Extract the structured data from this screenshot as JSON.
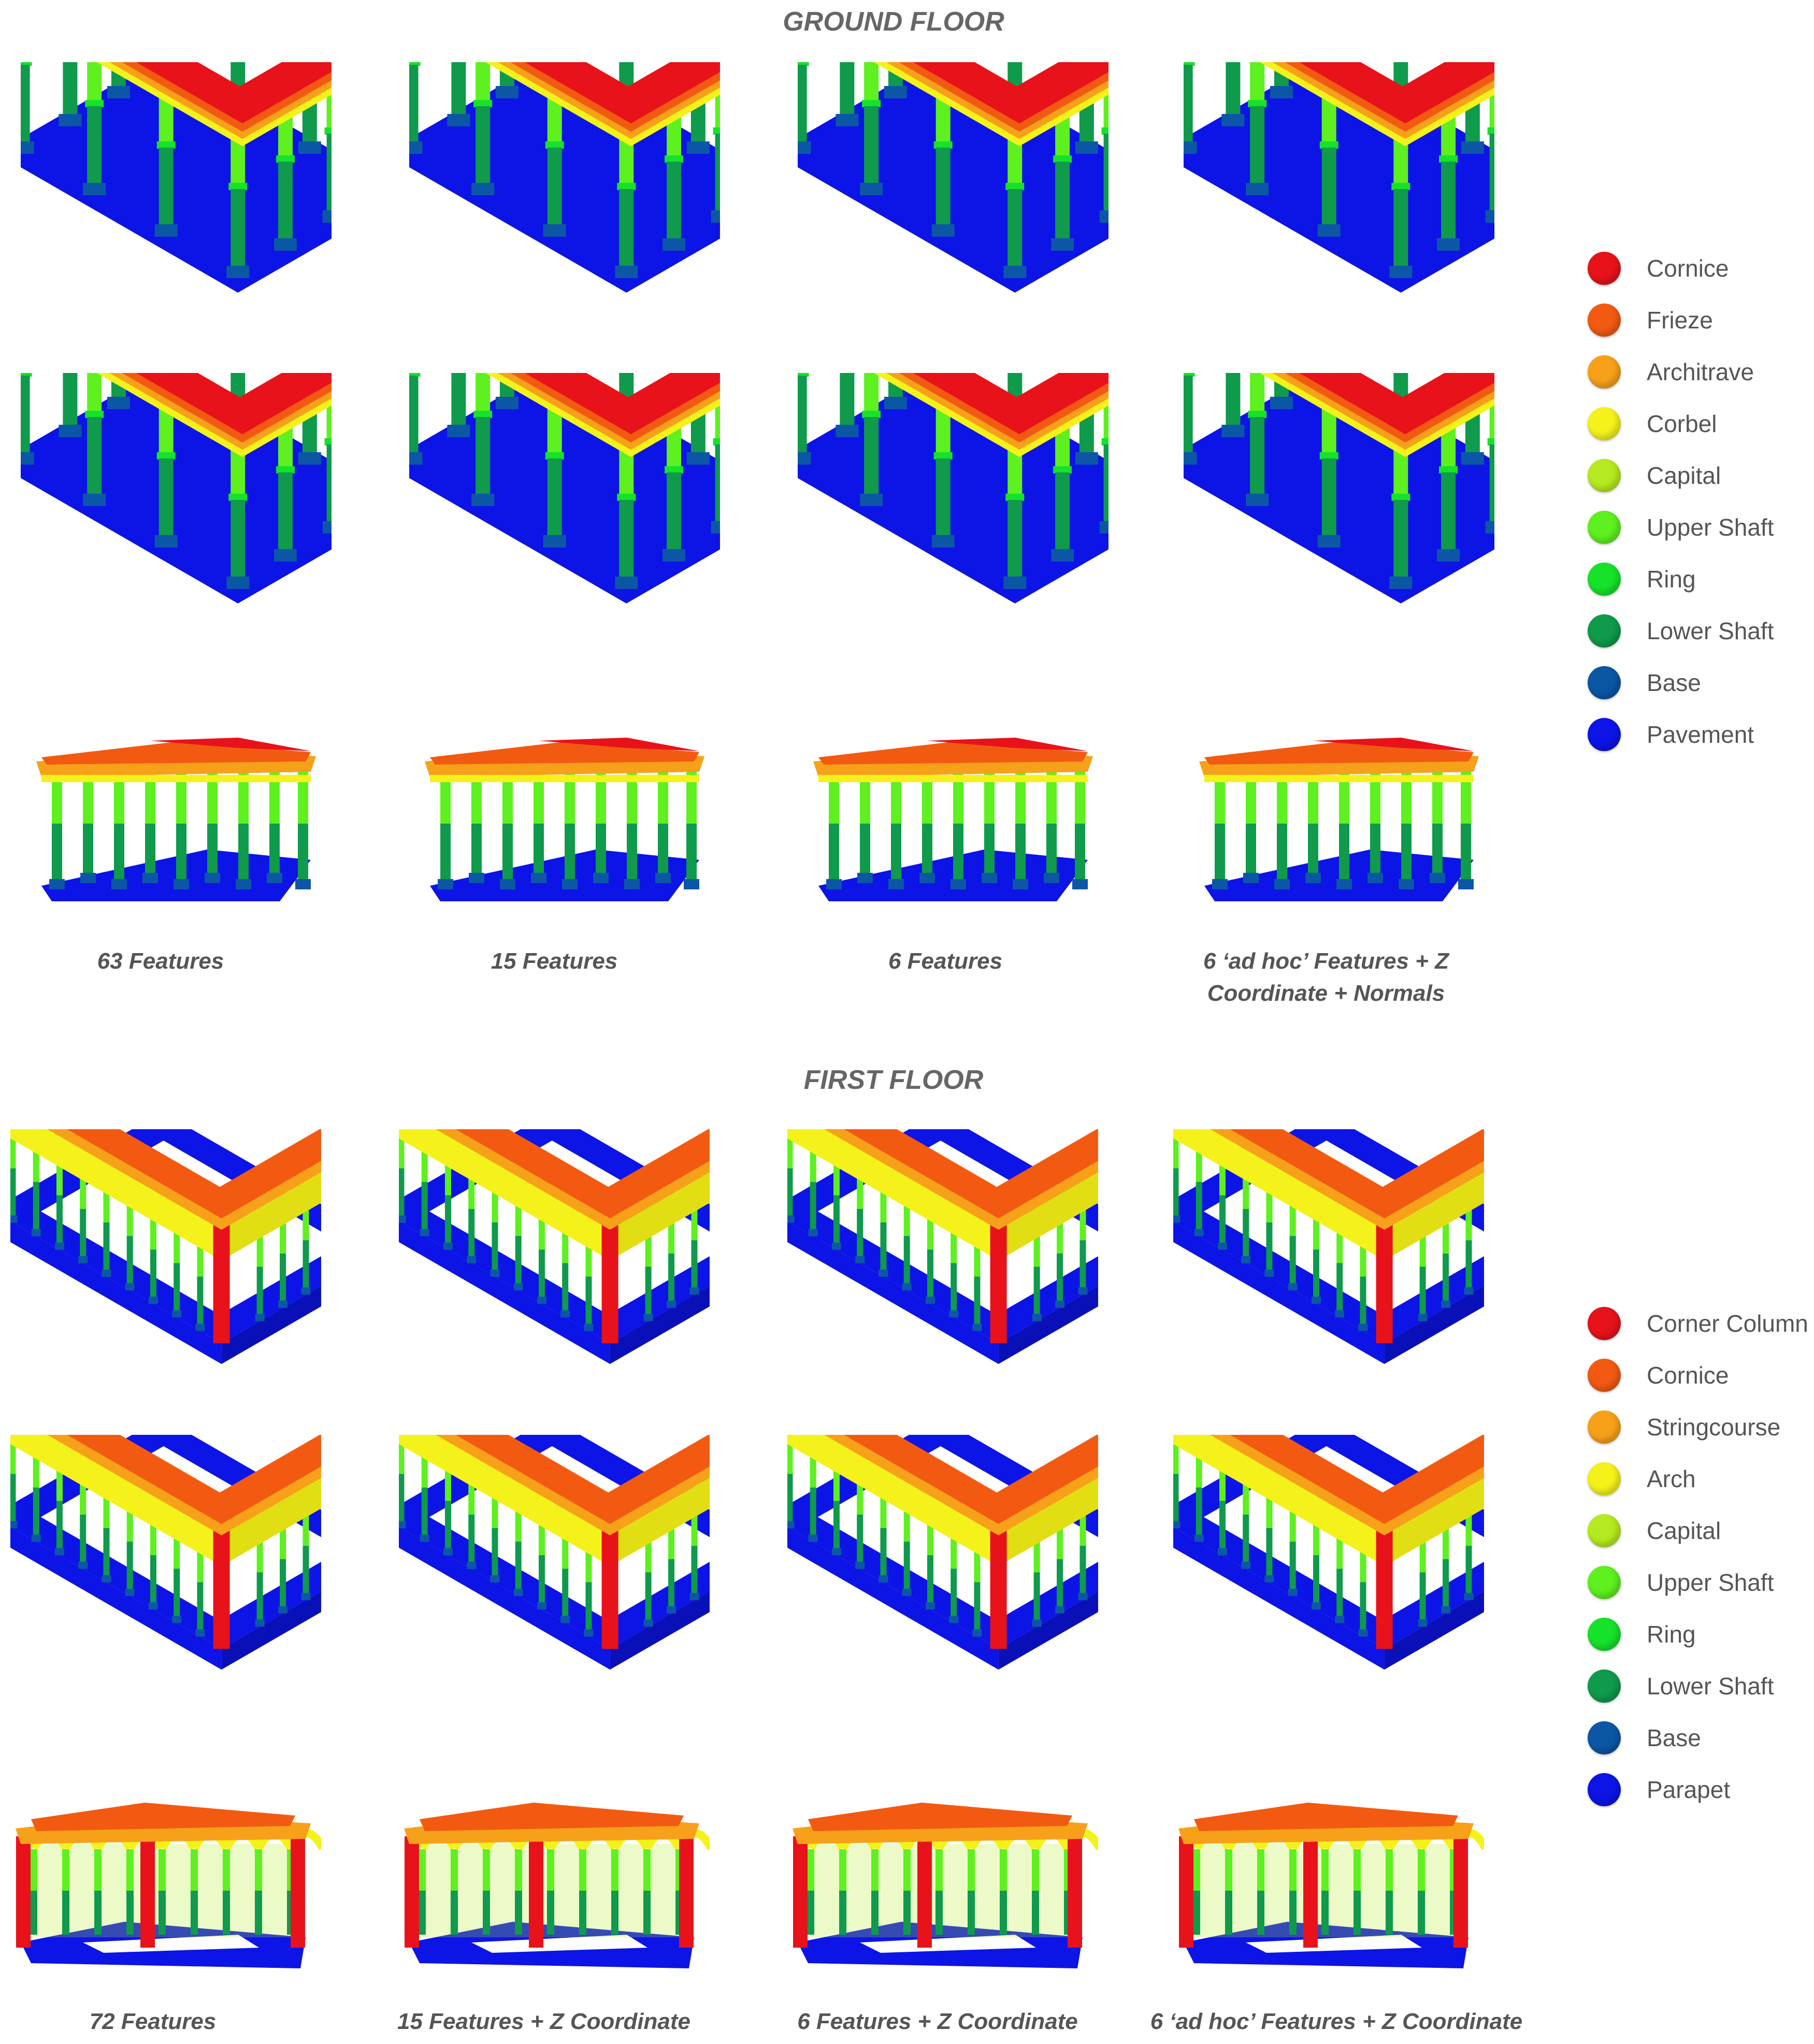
{
  "ground_floor": {
    "title": "GROUND FLOOR",
    "captions": [
      "63 Features",
      "15 Features",
      "6 Features",
      "6 ‘ad hoc’ Features + Z Coordinate + Normals"
    ],
    "legend": [
      {
        "label": "Cornice",
        "color": "#e8121a"
      },
      {
        "label": "Frieze",
        "color": "#f25a12"
      },
      {
        "label": "Architrave",
        "color": "#f7a11a"
      },
      {
        "label": "Corbel",
        "color": "#f4f21a"
      },
      {
        "label": "Capital",
        "color": "#b4ea1f"
      },
      {
        "label": "Upper Shaft",
        "color": "#5ef01f"
      },
      {
        "label": "Ring",
        "color": "#16e22a"
      },
      {
        "label": "Lower Shaft",
        "color": "#0f9a4c"
      },
      {
        "label": "Base",
        "color": "#0c56a6"
      },
      {
        "label": "Pavement",
        "color": "#0c14e6"
      }
    ]
  },
  "first_floor": {
    "title": "FIRST FLOOR",
    "captions": [
      "72 Features",
      "15 Features + Z Coordinate",
      "6 Features + Z Coordinate",
      "6 ‘ad hoc’ Features + Z Coordinate"
    ],
    "legend": [
      {
        "label": "Corner Column",
        "color": "#e8121a"
      },
      {
        "label": "Cornice",
        "color": "#f25a12"
      },
      {
        "label": "Stringcourse",
        "color": "#f7a11a"
      },
      {
        "label": "Arch",
        "color": "#f4f21a"
      },
      {
        "label": "Capital",
        "color": "#b4ea1f"
      },
      {
        "label": "Upper Shaft",
        "color": "#5ef01f"
      },
      {
        "label": "Ring",
        "color": "#16e22a"
      },
      {
        "label": "Lower Shaft",
        "color": "#0f9a4c"
      },
      {
        "label": "Base",
        "color": "#0c56a6"
      },
      {
        "label": "Parapet",
        "color": "#0c14e6"
      }
    ]
  }
}
